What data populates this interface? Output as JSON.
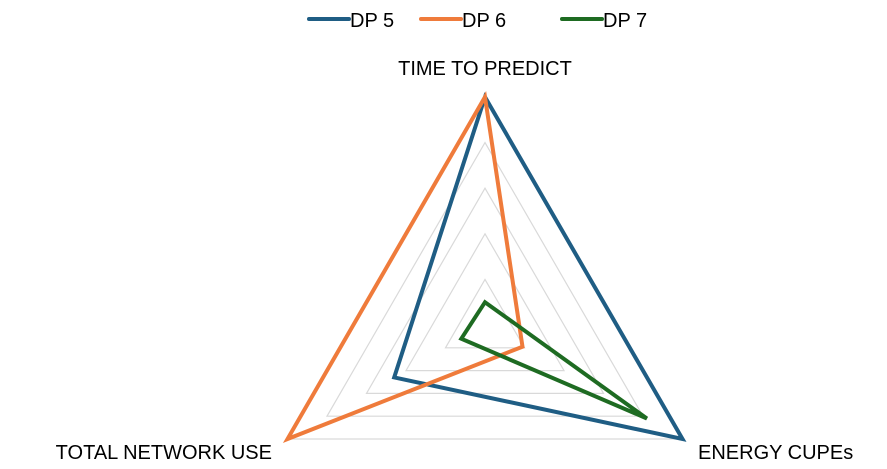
{
  "chart_data": {
    "type": "radar",
    "axes": [
      "TIME TO  PREDICT",
      "ENERGY CUPEs",
      "TOTAL NETWORK USE"
    ],
    "rlim": [
      0,
      5
    ],
    "grid_levels": 5,
    "grid": true,
    "legend_position": "top",
    "series": [
      {
        "name": "DP 5",
        "color": "#1f5d84",
        "values": [
          5.0,
          5.0,
          2.3
        ]
      },
      {
        "name": "DP 6",
        "color": "#ef7b3b",
        "values": [
          5.0,
          0.95,
          5.0
        ]
      },
      {
        "name": "DP 7",
        "color": "#1e6b22",
        "values": [
          0.5,
          4.1,
          0.6
        ]
      }
    ]
  }
}
